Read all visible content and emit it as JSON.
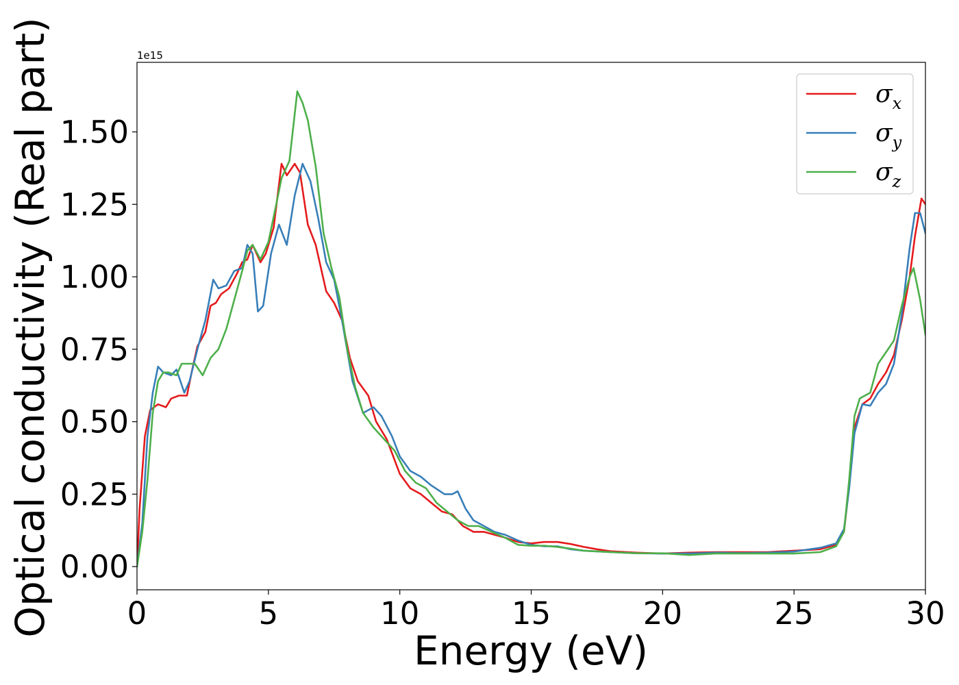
{
  "chart_data": {
    "type": "line",
    "title": "",
    "xlabel": "Energy (eV)",
    "ylabel": "Optical conductivity (Real part)",
    "y_offset_text": "1e15",
    "xlim": [
      0,
      30
    ],
    "ylim": [
      -0.08,
      1.74
    ],
    "xticks": [
      0,
      5,
      10,
      15,
      20,
      25,
      30
    ],
    "xtick_labels": [
      "0",
      "5",
      "10",
      "15",
      "20",
      "25",
      "30"
    ],
    "yticks": [
      0,
      0.25,
      0.5,
      0.75,
      1.0,
      1.25,
      1.5
    ],
    "ytick_labels": [
      "0.00",
      "0.25",
      "0.50",
      "0.75",
      "1.00",
      "1.25",
      "1.50"
    ],
    "grid": false,
    "legend_position": "top-right",
    "series": [
      {
        "name": "σx",
        "symbol": "σ",
        "subscript": "x",
        "color": "#e41a1c",
        "points": [
          [
            0,
            0
          ],
          [
            0.1,
            0.2
          ],
          [
            0.3,
            0.45
          ],
          [
            0.5,
            0.54
          ],
          [
            0.8,
            0.56
          ],
          [
            1.1,
            0.55
          ],
          [
            1.3,
            0.58
          ],
          [
            1.6,
            0.59
          ],
          [
            1.9,
            0.59
          ],
          [
            2.1,
            0.68
          ],
          [
            2.3,
            0.76
          ],
          [
            2.6,
            0.81
          ],
          [
            2.8,
            0.9
          ],
          [
            3.0,
            0.91
          ],
          [
            3.2,
            0.94
          ],
          [
            3.5,
            0.96
          ],
          [
            3.8,
            1.01
          ],
          [
            4.0,
            1.05
          ],
          [
            4.2,
            1.06
          ],
          [
            4.4,
            1.11
          ],
          [
            4.7,
            1.05
          ],
          [
            4.9,
            1.08
          ],
          [
            5.2,
            1.17
          ],
          [
            5.5,
            1.39
          ],
          [
            5.7,
            1.35
          ],
          [
            6.0,
            1.39
          ],
          [
            6.2,
            1.36
          ],
          [
            6.5,
            1.18
          ],
          [
            6.8,
            1.11
          ],
          [
            7.2,
            0.95
          ],
          [
            7.5,
            0.91
          ],
          [
            7.8,
            0.85
          ],
          [
            8.1,
            0.72
          ],
          [
            8.4,
            0.64
          ],
          [
            8.8,
            0.59
          ],
          [
            9.1,
            0.5
          ],
          [
            9.5,
            0.44
          ],
          [
            10.0,
            0.32
          ],
          [
            10.4,
            0.27
          ],
          [
            10.8,
            0.25
          ],
          [
            11.2,
            0.22
          ],
          [
            11.6,
            0.19
          ],
          [
            12.0,
            0.18
          ],
          [
            12.4,
            0.14
          ],
          [
            12.8,
            0.12
          ],
          [
            13.2,
            0.12
          ],
          [
            13.6,
            0.11
          ],
          [
            14.0,
            0.1
          ],
          [
            14.5,
            0.085
          ],
          [
            15.0,
            0.08
          ],
          [
            15.5,
            0.085
          ],
          [
            16.0,
            0.085
          ],
          [
            16.5,
            0.078
          ],
          [
            17.0,
            0.068
          ],
          [
            17.5,
            0.06
          ],
          [
            18.0,
            0.053
          ],
          [
            19.0,
            0.048
          ],
          [
            20.0,
            0.045
          ],
          [
            21.0,
            0.048
          ],
          [
            22.0,
            0.05
          ],
          [
            23.0,
            0.05
          ],
          [
            24.0,
            0.05
          ],
          [
            25.0,
            0.055
          ],
          [
            26.0,
            0.06
          ],
          [
            26.6,
            0.075
          ],
          [
            26.9,
            0.12
          ],
          [
            27.1,
            0.28
          ],
          [
            27.3,
            0.48
          ],
          [
            27.6,
            0.56
          ],
          [
            27.9,
            0.58
          ],
          [
            28.2,
            0.63
          ],
          [
            28.5,
            0.67
          ],
          [
            28.8,
            0.73
          ],
          [
            29.1,
            0.85
          ],
          [
            29.4,
            1.0
          ],
          [
            29.6,
            1.14
          ],
          [
            29.85,
            1.27
          ],
          [
            30.0,
            1.25
          ]
        ]
      },
      {
        "name": "σy",
        "symbol": "σ",
        "subscript": "y",
        "color": "#377eb8",
        "points": [
          [
            0,
            0
          ],
          [
            0.2,
            0.15
          ],
          [
            0.4,
            0.45
          ],
          [
            0.6,
            0.6
          ],
          [
            0.8,
            0.69
          ],
          [
            1.0,
            0.67
          ],
          [
            1.3,
            0.66
          ],
          [
            1.5,
            0.68
          ],
          [
            1.8,
            0.6
          ],
          [
            2.0,
            0.64
          ],
          [
            2.3,
            0.75
          ],
          [
            2.6,
            0.85
          ],
          [
            2.9,
            0.99
          ],
          [
            3.1,
            0.96
          ],
          [
            3.4,
            0.97
          ],
          [
            3.7,
            1.02
          ],
          [
            4.0,
            1.03
          ],
          [
            4.2,
            1.11
          ],
          [
            4.4,
            1.08
          ],
          [
            4.6,
            0.88
          ],
          [
            4.8,
            0.9
          ],
          [
            5.1,
            1.08
          ],
          [
            5.4,
            1.18
          ],
          [
            5.7,
            1.11
          ],
          [
            6.0,
            1.28
          ],
          [
            6.3,
            1.39
          ],
          [
            6.6,
            1.33
          ],
          [
            6.9,
            1.2
          ],
          [
            7.2,
            1.05
          ],
          [
            7.5,
            0.99
          ],
          [
            7.8,
            0.85
          ],
          [
            8.2,
            0.64
          ],
          [
            8.6,
            0.53
          ],
          [
            9.0,
            0.55
          ],
          [
            9.3,
            0.52
          ],
          [
            9.7,
            0.45
          ],
          [
            10.0,
            0.38
          ],
          [
            10.4,
            0.33
          ],
          [
            10.8,
            0.31
          ],
          [
            11.2,
            0.28
          ],
          [
            11.7,
            0.25
          ],
          [
            12.0,
            0.25
          ],
          [
            12.2,
            0.26
          ],
          [
            12.5,
            0.2
          ],
          [
            12.8,
            0.16
          ],
          [
            13.2,
            0.14
          ],
          [
            13.6,
            0.12
          ],
          [
            14.0,
            0.11
          ],
          [
            14.5,
            0.09
          ],
          [
            15.0,
            0.075
          ],
          [
            15.5,
            0.07
          ],
          [
            16.0,
            0.07
          ],
          [
            16.5,
            0.06
          ],
          [
            17.0,
            0.055
          ],
          [
            18.0,
            0.05
          ],
          [
            19.0,
            0.046
          ],
          [
            20.0,
            0.045
          ],
          [
            21.0,
            0.045
          ],
          [
            22.0,
            0.048
          ],
          [
            23.0,
            0.047
          ],
          [
            24.0,
            0.048
          ],
          [
            25.0,
            0.052
          ],
          [
            26.0,
            0.065
          ],
          [
            26.6,
            0.08
          ],
          [
            26.9,
            0.13
          ],
          [
            27.1,
            0.27
          ],
          [
            27.3,
            0.46
          ],
          [
            27.6,
            0.56
          ],
          [
            27.9,
            0.555
          ],
          [
            28.2,
            0.6
          ],
          [
            28.5,
            0.63
          ],
          [
            28.8,
            0.7
          ],
          [
            29.1,
            0.87
          ],
          [
            29.4,
            1.1
          ],
          [
            29.6,
            1.22
          ],
          [
            29.8,
            1.22
          ],
          [
            30.0,
            1.15
          ]
        ]
      },
      {
        "name": "σz",
        "symbol": "σ",
        "subscript": "z",
        "color": "#4daf4a",
        "points": [
          [
            0,
            0
          ],
          [
            0.2,
            0.12
          ],
          [
            0.4,
            0.3
          ],
          [
            0.6,
            0.53
          ],
          [
            0.8,
            0.64
          ],
          [
            1.0,
            0.67
          ],
          [
            1.2,
            0.67
          ],
          [
            1.5,
            0.66
          ],
          [
            1.7,
            0.7
          ],
          [
            2.0,
            0.7
          ],
          [
            2.2,
            0.7
          ],
          [
            2.5,
            0.66
          ],
          [
            2.8,
            0.72
          ],
          [
            3.1,
            0.75
          ],
          [
            3.4,
            0.82
          ],
          [
            3.7,
            0.92
          ],
          [
            4.0,
            1.02
          ],
          [
            4.2,
            1.09
          ],
          [
            4.4,
            1.11
          ],
          [
            4.7,
            1.06
          ],
          [
            5.0,
            1.12
          ],
          [
            5.3,
            1.25
          ],
          [
            5.5,
            1.34
          ],
          [
            5.8,
            1.4
          ],
          [
            6.1,
            1.64
          ],
          [
            6.3,
            1.6
          ],
          [
            6.5,
            1.54
          ],
          [
            6.8,
            1.38
          ],
          [
            7.1,
            1.15
          ],
          [
            7.4,
            1.03
          ],
          [
            7.7,
            0.93
          ],
          [
            8.0,
            0.75
          ],
          [
            8.3,
            0.62
          ],
          [
            8.6,
            0.53
          ],
          [
            9.0,
            0.48
          ],
          [
            9.4,
            0.44
          ],
          [
            9.8,
            0.4
          ],
          [
            10.2,
            0.33
          ],
          [
            10.6,
            0.29
          ],
          [
            11.0,
            0.27
          ],
          [
            11.4,
            0.22
          ],
          [
            11.8,
            0.19
          ],
          [
            12.2,
            0.16
          ],
          [
            12.6,
            0.14
          ],
          [
            13.0,
            0.14
          ],
          [
            13.5,
            0.12
          ],
          [
            14.0,
            0.1
          ],
          [
            14.5,
            0.075
          ],
          [
            15.0,
            0.072
          ],
          [
            15.5,
            0.072
          ],
          [
            16.0,
            0.068
          ],
          [
            16.5,
            0.062
          ],
          [
            17.0,
            0.055
          ],
          [
            18.0,
            0.05
          ],
          [
            19.0,
            0.046
          ],
          [
            20.0,
            0.046
          ],
          [
            21.0,
            0.04
          ],
          [
            22.0,
            0.045
          ],
          [
            23.0,
            0.045
          ],
          [
            24.0,
            0.045
          ],
          [
            25.0,
            0.045
          ],
          [
            26.0,
            0.05
          ],
          [
            26.6,
            0.07
          ],
          [
            26.9,
            0.12
          ],
          [
            27.1,
            0.3
          ],
          [
            27.3,
            0.52
          ],
          [
            27.5,
            0.58
          ],
          [
            27.9,
            0.6
          ],
          [
            28.2,
            0.7
          ],
          [
            28.5,
            0.74
          ],
          [
            28.8,
            0.78
          ],
          [
            29.1,
            0.9
          ],
          [
            29.4,
            1.0
          ],
          [
            29.55,
            1.03
          ],
          [
            29.8,
            0.92
          ],
          [
            30.0,
            0.8
          ]
        ]
      }
    ]
  }
}
